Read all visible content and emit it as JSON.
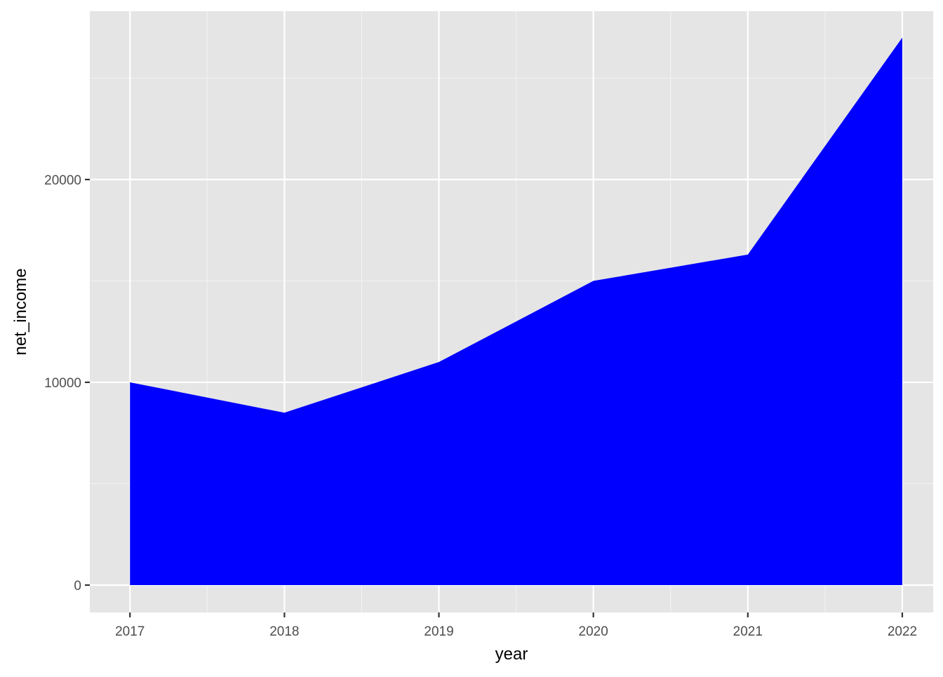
{
  "chart_data": {
    "type": "area",
    "title": "",
    "xlabel": "year",
    "ylabel": "net_income",
    "x": [
      2017,
      2018,
      2019,
      2020,
      2021,
      2022
    ],
    "series": [
      {
        "values": [
          10000,
          8500,
          11000,
          15000,
          16300,
          27000
        ]
      }
    ],
    "xlim": [
      2016.74,
      2022.2
    ],
    "ylim": [
      -1350,
      28300
    ],
    "x_ticks": [
      2017,
      2018,
      2019,
      2020,
      2021,
      2022
    ],
    "y_ticks": [
      0,
      10000,
      20000
    ],
    "x_tick_labels": [
      "2017",
      "2018",
      "2019",
      "2020",
      "2021",
      "2022"
    ],
    "y_tick_labels": [
      "0",
      "10000",
      "20000"
    ],
    "grid": true,
    "legend": "none",
    "colors": {
      "fill": "#0000ff",
      "panel_background": "#e5e5e5",
      "grid_major": "#ffffff",
      "grid_minor": "#f2f2f2",
      "tick_label": "#4d4d4d",
      "axis_title": "#000000"
    }
  }
}
